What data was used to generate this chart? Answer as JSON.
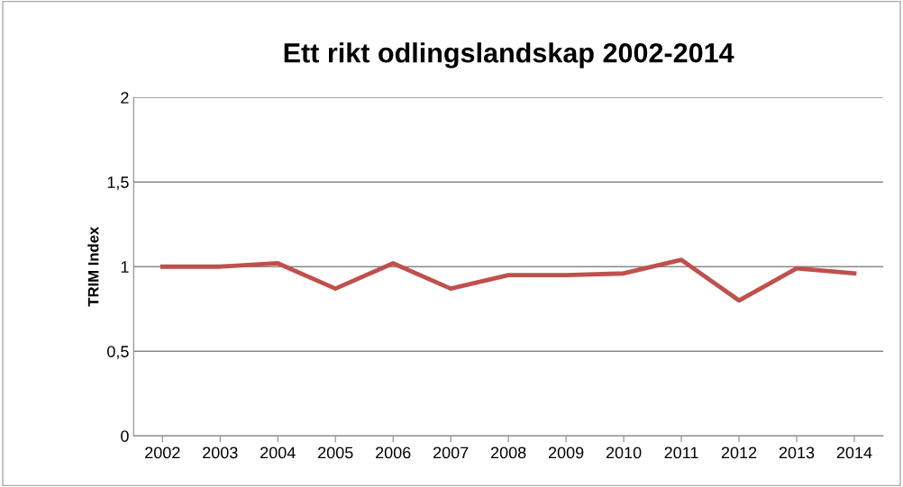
{
  "chart_data": {
    "type": "line",
    "title": "Ett rikt odlingslandskap 2002-2014",
    "ylabel": "TRIM Index",
    "categories": [
      "2002",
      "2003",
      "2004",
      "2005",
      "2006",
      "2007",
      "2008",
      "2009",
      "2010",
      "2011",
      "2012",
      "2013",
      "2014"
    ],
    "series": [
      {
        "color": "#c0504d",
        "values": [
          1.0,
          1.0,
          1.02,
          0.87,
          1.02,
          0.87,
          0.95,
          0.95,
          0.96,
          1.04,
          0.8,
          0.99,
          0.96
        ]
      }
    ],
    "ylim": [
      0,
      2
    ],
    "yticks": [
      0,
      {
        "value": 0.5,
        "label": "0,5"
      },
      1,
      {
        "value": 1.5,
        "label": "1,5"
      },
      2
    ],
    "grid": "y",
    "marker": "none",
    "line_style": "solid"
  }
}
